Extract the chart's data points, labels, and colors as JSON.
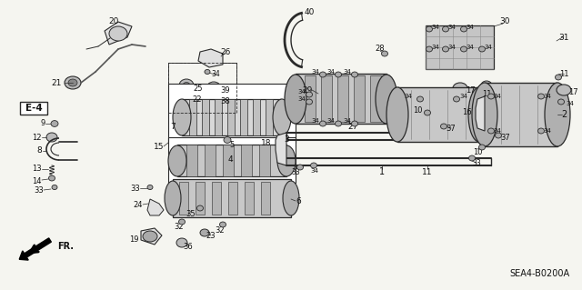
{
  "ref_code": "SEA4-B0200A",
  "bg_color": "#f5f5f0",
  "fig_width": 6.4,
  "fig_height": 3.19,
  "dpi": 100,
  "line_color": "#2a2a2a",
  "text_color": "#111111",
  "gray_fill": "#c8c8c8",
  "light_gray": "#e0e0e0",
  "dark_gray": "#888888",
  "hatch_color": "#555555"
}
